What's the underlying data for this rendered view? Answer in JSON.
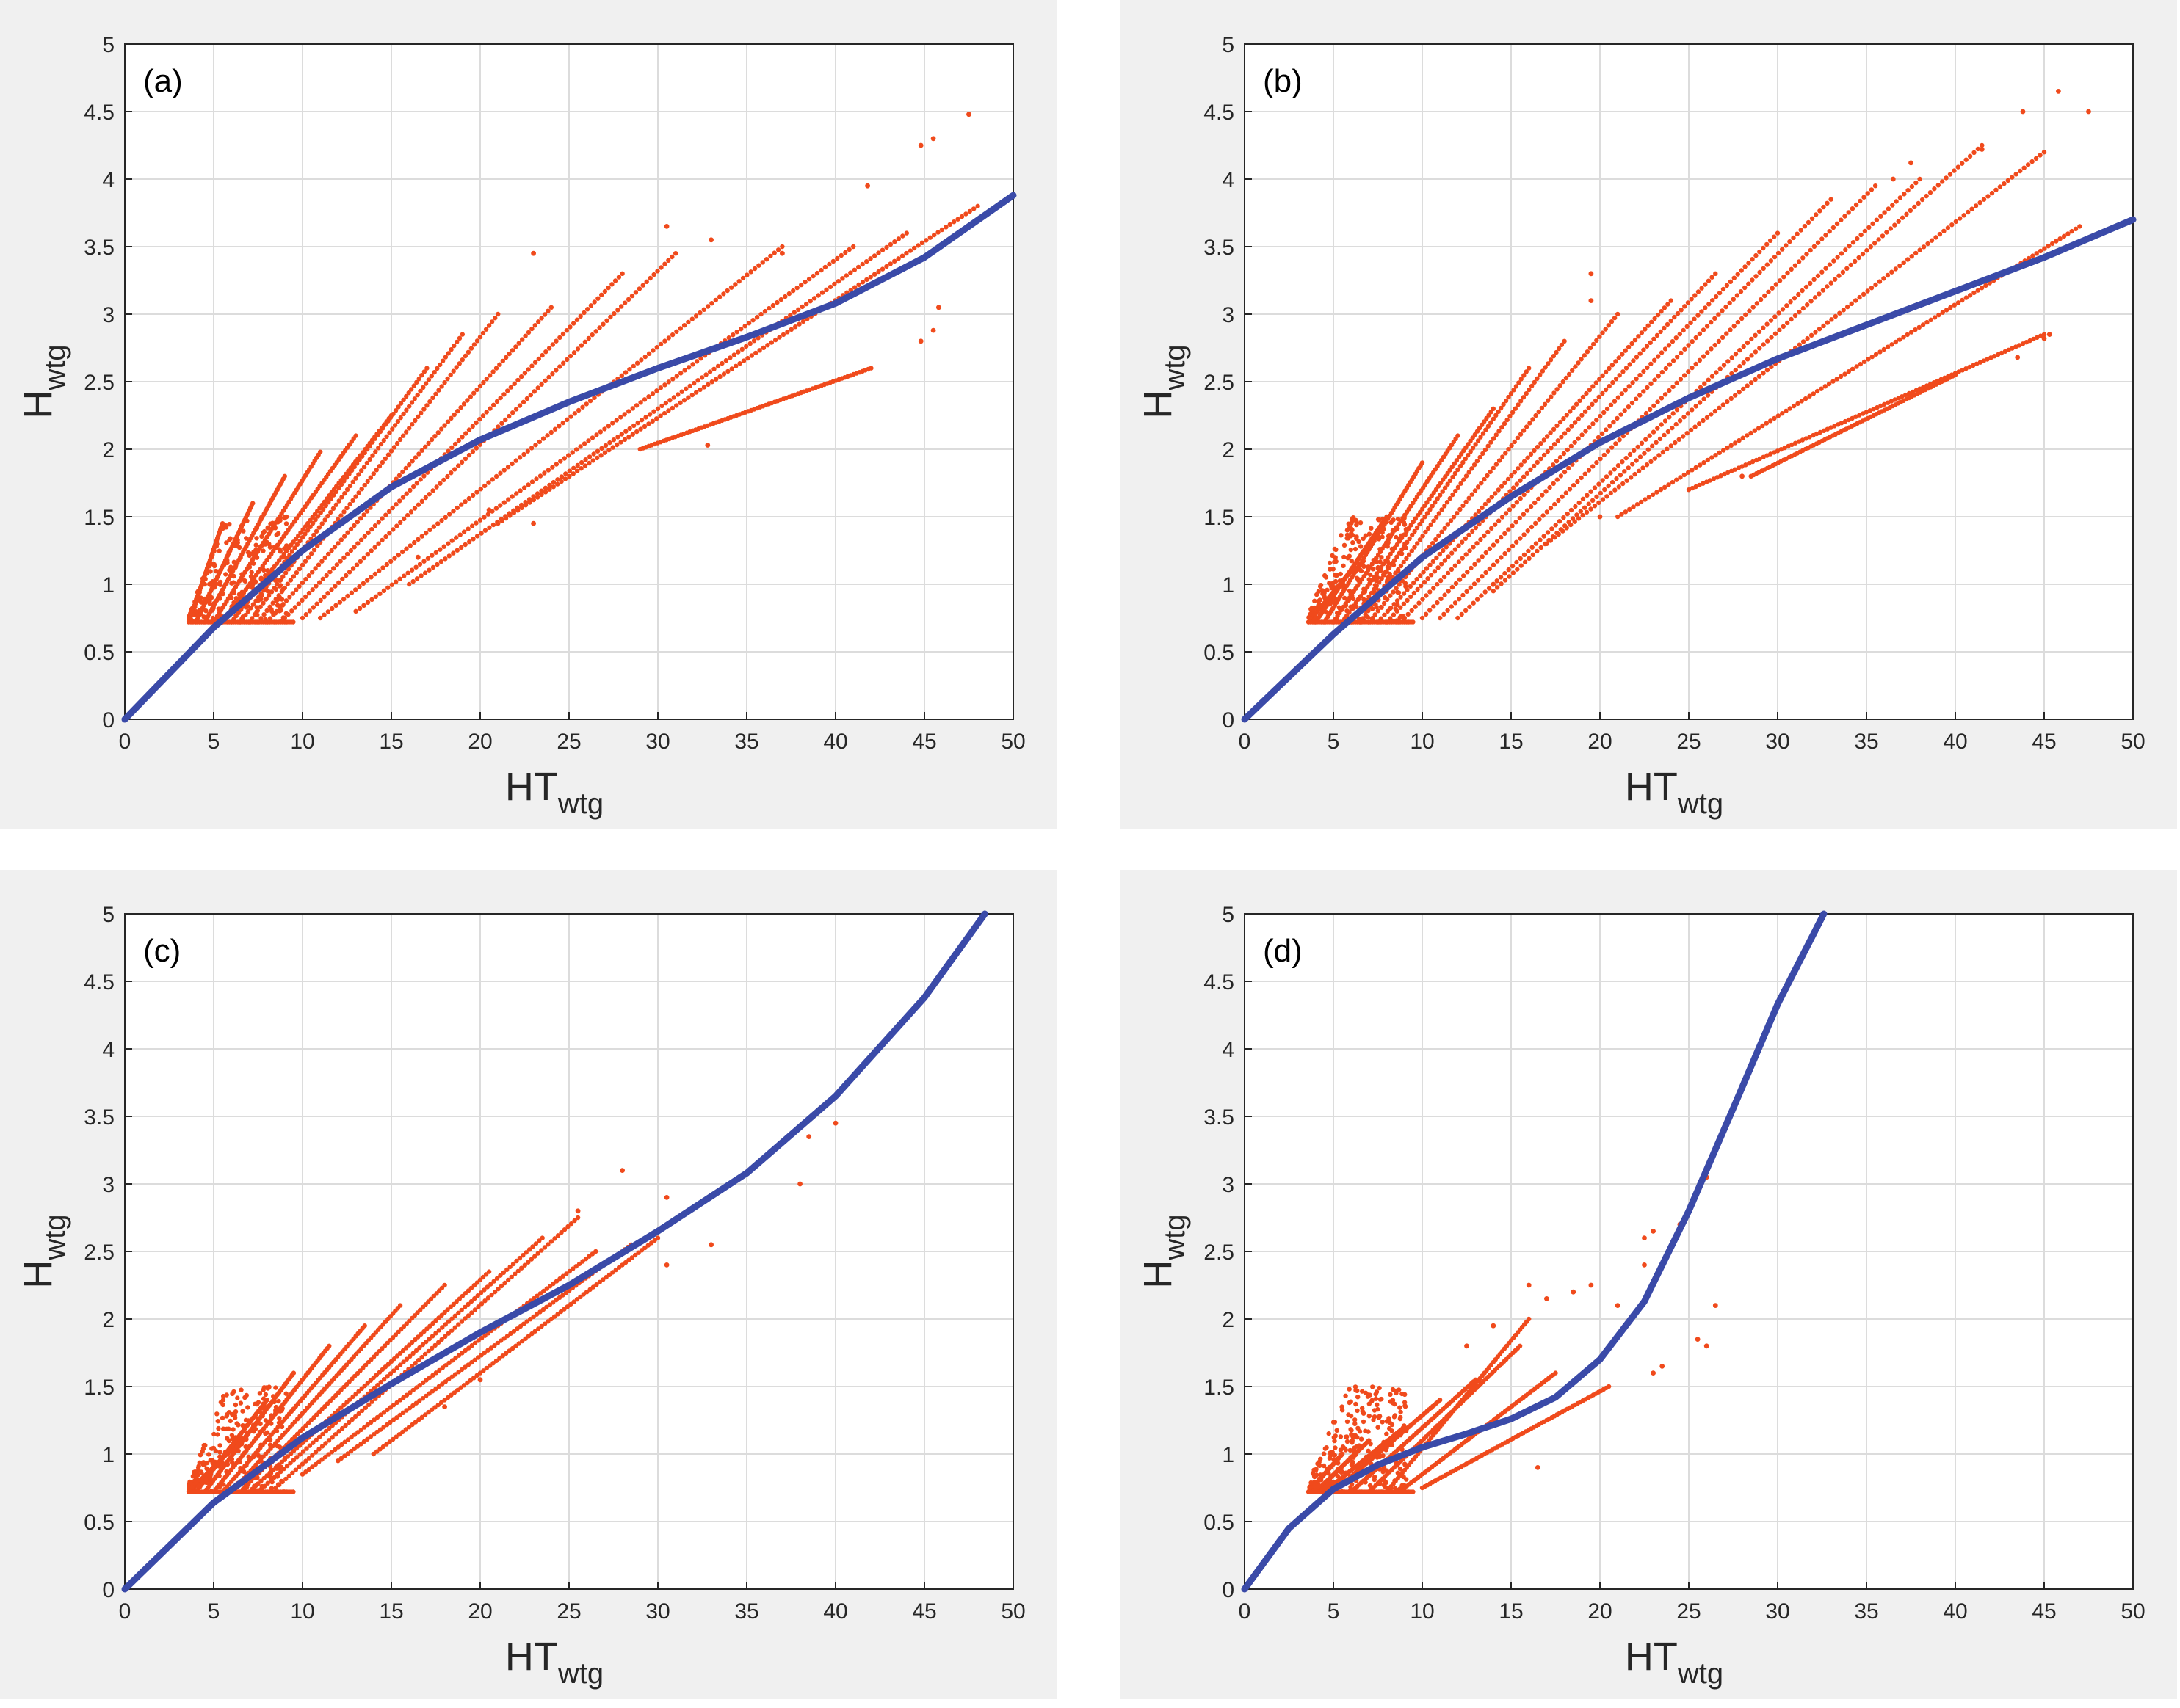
{
  "chart_data": [
    {
      "type": "scatter",
      "panel_label": "(a)",
      "xlabel": "HT",
      "xlabel_sub": "wtg",
      "ylabel": "H",
      "ylabel_sub": "wtg",
      "xlim": [
        0,
        50
      ],
      "ylim": [
        0,
        5
      ],
      "xticks": [
        0,
        5,
        10,
        15,
        20,
        25,
        30,
        35,
        40,
        45,
        50
      ],
      "yticks": [
        0,
        0.5,
        1,
        1.5,
        2,
        2.5,
        3,
        3.5,
        4,
        4.5,
        5
      ],
      "grid": true,
      "colors": {
        "points": "#f04a1c",
        "curve": "#3a4aa8"
      },
      "fit_curve": {
        "x": [
          0,
          5,
          10,
          15,
          20,
          25,
          30,
          35,
          40,
          45,
          50
        ],
        "y": [
          0,
          0.68,
          1.25,
          1.72,
          2.07,
          2.35,
          2.6,
          2.83,
          3.08,
          3.42,
          3.88
        ]
      },
      "scatter_fans": [
        {
          "x0": 3.6,
          "x1": 5.5,
          "y0": 0.72,
          "y1": 1.45
        },
        {
          "x0": 4.0,
          "x1": 7.2,
          "y0": 0.72,
          "y1": 1.6
        },
        {
          "x0": 4.5,
          "x1": 9.0,
          "y0": 0.72,
          "y1": 1.8
        },
        {
          "x0": 5.0,
          "x1": 11.0,
          "y0": 0.72,
          "y1": 1.98
        },
        {
          "x0": 5.5,
          "x1": 13.0,
          "y0": 0.72,
          "y1": 2.1
        },
        {
          "x0": 6.0,
          "x1": 15.0,
          "y0": 0.72,
          "y1": 2.25
        },
        {
          "x0": 6.5,
          "x1": 17.0,
          "y0": 0.72,
          "y1": 2.6
        },
        {
          "x0": 7.0,
          "x1": 19.0,
          "y0": 0.72,
          "y1": 2.85
        },
        {
          "x0": 7.5,
          "x1": 21.0,
          "y0": 0.72,
          "y1": 3.0
        },
        {
          "x0": 8.0,
          "x1": 24.0,
          "y0": 0.72,
          "y1": 3.05
        },
        {
          "x0": 9.0,
          "x1": 28.0,
          "y0": 0.75,
          "y1": 3.3
        },
        {
          "x0": 10.0,
          "x1": 31.0,
          "y0": 0.75,
          "y1": 3.45
        },
        {
          "x0": 11.0,
          "x1": 37.0,
          "y0": 0.75,
          "y1": 3.5
        },
        {
          "x0": 13.0,
          "x1": 41.0,
          "y0": 0.8,
          "y1": 3.5
        },
        {
          "x0": 16.0,
          "x1": 44.0,
          "y0": 1.0,
          "y1": 3.6
        },
        {
          "x0": 21.0,
          "x1": 48.0,
          "y0": 1.45,
          "y1": 3.8
        },
        {
          "x0": 29.0,
          "x1": 42.0,
          "y0": 2.0,
          "y1": 2.6
        }
      ],
      "scatter_points": [
        [
          47.5,
          4.48
        ],
        [
          45.5,
          4.3
        ],
        [
          44.8,
          4.25
        ],
        [
          41.8,
          3.95
        ],
        [
          30.5,
          3.65
        ],
        [
          33.0,
          3.55
        ],
        [
          37.0,
          3.45
        ],
        [
          23.0,
          3.45
        ],
        [
          45.8,
          3.05
        ],
        [
          44.8,
          2.8
        ],
        [
          45.5,
          2.88
        ],
        [
          32.8,
          2.03
        ],
        [
          23.0,
          1.45
        ],
        [
          20.5,
          1.55
        ],
        [
          16.5,
          1.2
        ]
      ]
    },
    {
      "type": "scatter",
      "panel_label": "(b)",
      "xlabel": "HT",
      "xlabel_sub": "wtg",
      "ylabel": "H",
      "ylabel_sub": "wtg",
      "xlim": [
        0,
        50
      ],
      "ylim": [
        0,
        5
      ],
      "xticks": [
        0,
        5,
        10,
        15,
        20,
        25,
        30,
        35,
        40,
        45,
        50
      ],
      "yticks": [
        0,
        0.5,
        1,
        1.5,
        2,
        2.5,
        3,
        3.5,
        4,
        4.5,
        5
      ],
      "grid": true,
      "colors": {
        "points": "#f04a1c",
        "curve": "#3a4aa8"
      },
      "fit_curve": {
        "x": [
          0,
          5,
          10,
          15,
          20,
          25,
          30,
          35,
          40,
          45,
          50
        ],
        "y": [
          0,
          0.63,
          1.2,
          1.65,
          2.05,
          2.38,
          2.67,
          2.92,
          3.17,
          3.42,
          3.7
        ]
      },
      "scatter_fans": [
        {
          "x0": 3.6,
          "x1": 6.0,
          "y0": 0.72,
          "y1": 1.1
        },
        {
          "x0": 4.0,
          "x1": 8.0,
          "y0": 0.72,
          "y1": 1.5
        },
        {
          "x0": 4.5,
          "x1": 10.0,
          "y0": 0.72,
          "y1": 1.9
        },
        {
          "x0": 5.0,
          "x1": 12.0,
          "y0": 0.72,
          "y1": 2.1
        },
        {
          "x0": 5.5,
          "x1": 14.0,
          "y0": 0.72,
          "y1": 2.3
        },
        {
          "x0": 6.0,
          "x1": 16.0,
          "y0": 0.72,
          "y1": 2.6
        },
        {
          "x0": 6.5,
          "x1": 18.0,
          "y0": 0.72,
          "y1": 2.8
        },
        {
          "x0": 7.0,
          "x1": 21.0,
          "y0": 0.72,
          "y1": 3.0
        },
        {
          "x0": 7.5,
          "x1": 24.0,
          "y0": 0.72,
          "y1": 3.1
        },
        {
          "x0": 8.0,
          "x1": 26.5,
          "y0": 0.72,
          "y1": 3.3
        },
        {
          "x0": 9.0,
          "x1": 30.0,
          "y0": 0.75,
          "y1": 3.6
        },
        {
          "x0": 10.0,
          "x1": 33.0,
          "y0": 0.75,
          "y1": 3.85
        },
        {
          "x0": 11.0,
          "x1": 35.5,
          "y0": 0.75,
          "y1": 3.95
        },
        {
          "x0": 12.0,
          "x1": 38.0,
          "y0": 0.75,
          "y1": 4.0
        },
        {
          "x0": 14.0,
          "x1": 41.5,
          "y0": 0.95,
          "y1": 4.25
        },
        {
          "x0": 17.0,
          "x1": 45.0,
          "y0": 1.3,
          "y1": 4.2
        },
        {
          "x0": 21.0,
          "x1": 47.0,
          "y0": 1.5,
          "y1": 3.65
        },
        {
          "x0": 25.0,
          "x1": 45.0,
          "y0": 1.7,
          "y1": 2.85
        },
        {
          "x0": 28.5,
          "x1": 40.0,
          "y0": 1.8,
          "y1": 2.55
        }
      ],
      "scatter_points": [
        [
          45.8,
          4.65
        ],
        [
          43.8,
          4.5
        ],
        [
          47.5,
          4.5
        ],
        [
          41.5,
          4.22
        ],
        [
          37.5,
          4.12
        ],
        [
          36.5,
          4.0
        ],
        [
          19.5,
          3.3
        ],
        [
          19.5,
          3.1
        ],
        [
          45.3,
          2.85
        ],
        [
          45.0,
          2.82
        ],
        [
          43.5,
          2.68
        ],
        [
          37.5,
          2.4
        ],
        [
          28.0,
          1.8
        ],
        [
          20.0,
          1.5
        ],
        [
          14.0,
          1.0
        ]
      ]
    },
    {
      "type": "scatter",
      "panel_label": "(c)",
      "xlabel": "HT",
      "xlabel_sub": "wtg",
      "ylabel": "H",
      "ylabel_sub": "wtg",
      "xlim": [
        0,
        50
      ],
      "ylim": [
        0,
        5
      ],
      "xticks": [
        0,
        5,
        10,
        15,
        20,
        25,
        30,
        35,
        40,
        45,
        50
      ],
      "yticks": [
        0,
        0.5,
        1,
        1.5,
        2,
        2.5,
        3,
        3.5,
        4,
        4.5,
        5
      ],
      "grid": true,
      "colors": {
        "points": "#f04a1c",
        "curve": "#3a4aa8"
      },
      "fit_curve": {
        "x": [
          0,
          5,
          10,
          15,
          20,
          25,
          30,
          35,
          40,
          45,
          48.4
        ],
        "y": [
          0,
          0.64,
          1.12,
          1.52,
          1.9,
          2.25,
          2.65,
          3.08,
          3.65,
          4.38,
          5.0
        ]
      },
      "scatter_fans": [
        {
          "x0": 3.6,
          "x1": 6.5,
          "y0": 0.72,
          "y1": 1.1
        },
        {
          "x0": 4.0,
          "x1": 8.0,
          "y0": 0.72,
          "y1": 1.4
        },
        {
          "x0": 4.5,
          "x1": 9.5,
          "y0": 0.72,
          "y1": 1.6
        },
        {
          "x0": 5.0,
          "x1": 11.5,
          "y0": 0.72,
          "y1": 1.8
        },
        {
          "x0": 5.5,
          "x1": 13.5,
          "y0": 0.72,
          "y1": 1.95
        },
        {
          "x0": 6.0,
          "x1": 15.5,
          "y0": 0.72,
          "y1": 2.1
        },
        {
          "x0": 6.5,
          "x1": 18.0,
          "y0": 0.72,
          "y1": 2.25
        },
        {
          "x0": 7.0,
          "x1": 20.5,
          "y0": 0.72,
          "y1": 2.35
        },
        {
          "x0": 7.5,
          "x1": 23.5,
          "y0": 0.72,
          "y1": 2.6
        },
        {
          "x0": 8.5,
          "x1": 25.5,
          "y0": 0.75,
          "y1": 2.75
        },
        {
          "x0": 10.0,
          "x1": 26.5,
          "y0": 0.85,
          "y1": 2.5
        },
        {
          "x0": 12.0,
          "x1": 28.5,
          "y0": 0.95,
          "y1": 2.55
        },
        {
          "x0": 14.0,
          "x1": 30.0,
          "y0": 1.0,
          "y1": 2.6
        }
      ],
      "scatter_points": [
        [
          40.0,
          3.45
        ],
        [
          38.5,
          3.35
        ],
        [
          36.0,
          3.2
        ],
        [
          38.0,
          3.0
        ],
        [
          28.0,
          3.1
        ],
        [
          30.5,
          2.9
        ],
        [
          33.0,
          2.55
        ],
        [
          30.5,
          2.4
        ],
        [
          25.5,
          2.8
        ],
        [
          20.0,
          1.55
        ],
        [
          18.0,
          1.35
        ]
      ]
    },
    {
      "type": "scatter",
      "panel_label": "(d)",
      "xlabel": "HT",
      "xlabel_sub": "wtg",
      "ylabel": "H",
      "ylabel_sub": "wtg",
      "xlim": [
        0,
        50
      ],
      "ylim": [
        0,
        5
      ],
      "xticks": [
        0,
        5,
        10,
        15,
        20,
        25,
        30,
        35,
        40,
        45,
        50
      ],
      "yticks": [
        0,
        0.5,
        1,
        1.5,
        2,
        2.5,
        3,
        3.5,
        4,
        4.5,
        5
      ],
      "grid": true,
      "colors": {
        "points": "#f04a1c",
        "curve": "#3a4aa8"
      },
      "fit_curve": {
        "x": [
          0,
          2.5,
          5,
          7.5,
          10,
          12.5,
          15,
          17.5,
          20,
          22.5,
          25,
          27.5,
          30,
          32.6
        ],
        "y": [
          0,
          0.45,
          0.74,
          0.92,
          1.05,
          1.15,
          1.26,
          1.42,
          1.7,
          2.13,
          2.8,
          3.56,
          4.33,
          5.0
        ]
      },
      "scatter_fans": [
        {
          "x0": 3.6,
          "x1": 5.5,
          "y0": 0.72,
          "y1": 1.0
        },
        {
          "x0": 4.0,
          "x1": 7.0,
          "y0": 0.72,
          "y1": 1.1
        },
        {
          "x0": 4.5,
          "x1": 9.0,
          "y0": 0.72,
          "y1": 1.2
        },
        {
          "x0": 5.0,
          "x1": 11.0,
          "y0": 0.72,
          "y1": 1.4
        },
        {
          "x0": 6.0,
          "x1": 13.0,
          "y0": 0.72,
          "y1": 1.55
        },
        {
          "x0": 7.0,
          "x1": 15.5,
          "y0": 0.72,
          "y1": 1.8
        },
        {
          "x0": 8.0,
          "x1": 16.0,
          "y0": 0.72,
          "y1": 2.0
        },
        {
          "x0": 9.0,
          "x1": 17.5,
          "y0": 0.75,
          "y1": 1.6
        },
        {
          "x0": 10.0,
          "x1": 20.5,
          "y0": 0.75,
          "y1": 1.5
        }
      ],
      "scatter_points": [
        [
          26.0,
          3.05
        ],
        [
          24.5,
          2.7
        ],
        [
          22.5,
          2.6
        ],
        [
          23.0,
          2.65
        ],
        [
          22.5,
          2.4
        ],
        [
          23.5,
          1.65
        ],
        [
          23.0,
          1.6
        ],
        [
          26.5,
          2.1
        ],
        [
          25.5,
          1.85
        ],
        [
          26.0,
          1.8
        ],
        [
          19.5,
          2.25
        ],
        [
          18.5,
          2.2
        ],
        [
          21.0,
          2.1
        ],
        [
          16.0,
          2.25
        ],
        [
          17.0,
          2.15
        ],
        [
          14.0,
          1.95
        ],
        [
          12.5,
          1.8
        ],
        [
          16.5,
          0.9
        ]
      ]
    }
  ]
}
